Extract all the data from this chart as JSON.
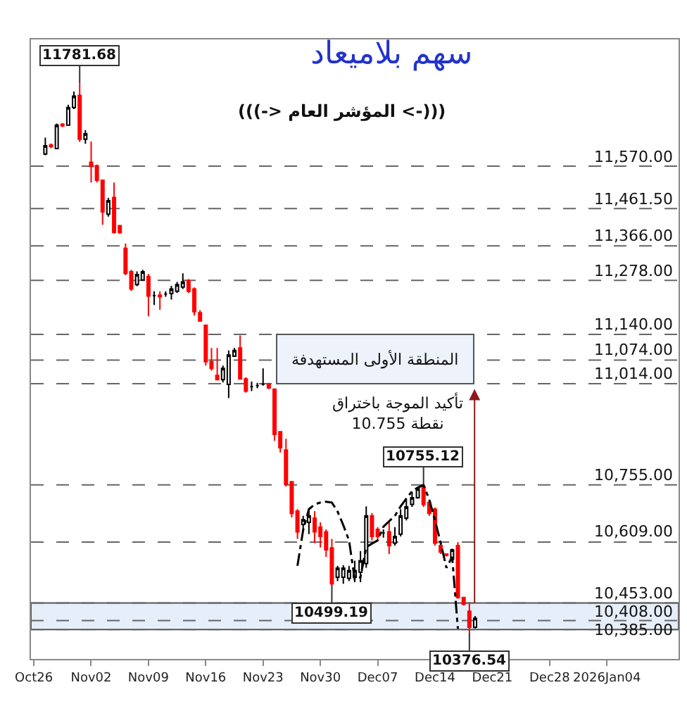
{
  "chart_data": {
    "type": "candlestick",
    "title": "سهم بلاميعاد",
    "subtitle": "(((-> المؤشر العام <-)))",
    "categories": [
      "Oct26",
      null,
      null,
      null,
      null,
      null,
      null,
      null,
      null,
      null,
      "Nov02",
      null,
      null,
      null,
      null,
      null,
      null,
      null,
      null,
      null,
      "Nov09",
      null,
      null,
      null,
      null,
      null,
      null,
      null,
      null,
      null,
      "Nov16",
      null,
      null,
      null,
      null,
      null,
      null,
      null,
      null,
      null,
      "Nov23",
      null,
      null,
      null,
      null,
      null,
      null,
      null,
      null,
      null,
      "Nov30",
      null,
      null,
      null,
      null,
      null,
      null,
      null,
      null,
      null,
      "Dec07",
      null,
      null,
      null,
      null,
      null,
      null,
      null,
      null,
      null,
      "Dec14",
      null,
      null,
      null,
      null,
      null,
      null,
      null,
      null,
      null,
      "Dec21",
      null,
      null,
      null,
      null,
      null,
      null,
      null,
      null,
      null,
      "Dec28",
      null,
      null,
      null,
      null,
      null,
      null,
      null,
      null,
      null,
      "2026Jan04",
      null,
      null,
      null,
      null,
      null,
      null,
      null,
      null,
      null,
      null,
      null,
      null
    ],
    "ohlc": [
      null,
      null,
      [
        11601,
        11643,
        11598,
        11622
      ],
      [
        11624,
        11628,
        11616,
        11620
      ],
      [
        11615,
        11679,
        11613,
        11675
      ],
      [
        11677,
        11680,
        11670,
        11673
      ],
      [
        11675,
        11727,
        11673,
        11720
      ],
      [
        11720,
        11761,
        11716,
        11749
      ],
      [
        11751,
        11781.68,
        11632,
        11639
      ],
      [
        11639,
        11662,
        11627,
        11653
      ],
      [
        11580,
        11633,
        11528,
        11569
      ],
      [
        11571,
        11574,
        11528,
        11534
      ],
      [
        11534,
        11536,
        11420,
        11453
      ],
      [
        11447,
        11489,
        11441,
        11482
      ],
      [
        11490,
        11528,
        11397,
        11401
      ],
      [
        11418,
        11418,
        11397,
        11400
      ],
      [
        11360,
        11372,
        11291,
        11296
      ],
      [
        11300,
        11305,
        11251,
        11256
      ],
      [
        11267,
        11301,
        11263,
        11293
      ],
      [
        11279,
        11305,
        11277,
        11300
      ],
      [
        11288,
        11294,
        11186,
        11238
      ],
      [
        11239,
        11250,
        11215,
        11239
      ],
      [
        11240,
        11250,
        11203,
        11236
      ],
      [
        11243,
        11250,
        11236,
        11243
      ],
      [
        11244,
        11264,
        11229,
        11256
      ],
      [
        11250,
        11274,
        11246,
        11267
      ],
      [
        11261,
        11296,
        11256,
        11274
      ],
      [
        11277,
        11281,
        11246,
        11250
      ],
      [
        11256,
        11260,
        11188,
        11198
      ],
      [
        11195,
        11202,
        11174,
        11174
      ],
      [
        11163,
        11163,
        11060,
        11070
      ],
      [
        11070,
        11105,
        11047,
        11053
      ],
      [
        11035,
        11105,
        11024,
        11024
      ],
      [
        11024,
        11060,
        11017,
        11053
      ],
      [
        11012,
        11099,
        10977,
        11087
      ],
      [
        11084,
        11105,
        11084,
        11099
      ],
      [
        11105,
        11137,
        11026,
        11026
      ],
      [
        11026,
        11030,
        10991,
        10995
      ],
      [
        11006,
        11019,
        10995,
        11006
      ],
      [
        11009,
        11016,
        11002,
        11009
      ],
      [
        11012,
        11053,
        11009,
        11012
      ],
      [
        11012,
        11016,
        11000,
        11003
      ],
      [
        11000,
        11000,
        10868,
        10884
      ],
      [
        10891,
        10891,
        10838,
        10850
      ],
      [
        10844,
        10873,
        10751,
        10757
      ],
      [
        10763,
        10763,
        10672,
        10682
      ],
      [
        10688,
        10693,
        10617,
        10635
      ],
      [
        10654,
        10676,
        10641,
        10666
      ],
      [
        10659,
        10693,
        10629,
        10676
      ],
      [
        10670,
        10688,
        10606,
        10635
      ],
      [
        10647,
        10659,
        10595,
        10623
      ],
      [
        10635,
        10641,
        10571,
        10589
      ],
      [
        10594,
        10617,
        10499.19,
        10502
      ],
      [
        10519,
        10548,
        10509,
        10542
      ],
      [
        10519,
        10550,
        10502,
        10542
      ],
      [
        10516,
        10548,
        10509,
        10536
      ],
      [
        10519,
        10561,
        10506,
        10536
      ],
      [
        10532,
        10586,
        10506,
        10561
      ],
      [
        10554,
        10700,
        10543,
        10676
      ],
      [
        10676,
        10683,
        10613,
        10623
      ],
      [
        10641,
        10647,
        10616,
        10623
      ],
      [
        10632,
        10641,
        10620,
        10632
      ],
      [
        10635,
        10659,
        10578,
        10600
      ],
      [
        10606,
        10647,
        10600,
        10623
      ],
      [
        10629,
        10693,
        10623,
        10676
      ],
      [
        10670,
        10717,
        10664,
        10699
      ],
      [
        10705,
        10738,
        10699,
        10722
      ],
      [
        10722,
        10750,
        10720,
        10745
      ],
      [
        10750,
        10755.12,
        10699,
        10705
      ],
      [
        10710,
        10713,
        10676,
        10682
      ],
      [
        10693,
        10697,
        10600,
        10606
      ],
      [
        10600,
        10606,
        10578,
        10583
      ],
      [
        10578,
        10580,
        10572,
        10575
      ],
      [
        10565,
        10592,
        10562,
        10589
      ],
      [
        10600,
        10609,
        10464,
        10467
      ],
      [
        10467,
        10467,
        10447,
        10450
      ],
      [
        10432,
        10453,
        10376.54,
        10391
      ],
      [
        10391,
        10420,
        10388,
        10414
      ],
      null,
      null,
      null,
      null,
      null,
      null,
      null,
      null,
      null,
      null,
      null,
      null,
      null,
      null,
      null,
      null,
      null,
      null,
      null,
      null,
      null,
      null,
      null,
      null,
      null,
      null,
      null,
      null,
      null,
      null,
      null,
      null,
      null,
      null,
      null
    ],
    "colors": [
      null,
      null,
      "#000000",
      "#ff0000",
      "#000000",
      "#ff0000",
      "#000000",
      "#000000",
      "#ff0000",
      "#000000",
      "#ff0000",
      "#ff0000",
      "#ff0000",
      "#000000",
      "#ff0000",
      "#ff0000",
      "#ff0000",
      "#ff0000",
      "#000000",
      "#000000",
      "#ff0000",
      "#000000",
      "#ff0000",
      "#000000",
      "#000000",
      "#000000",
      "#000000",
      "#ff0000",
      "#ff0000",
      "#ff0000",
      "#ff0000",
      "#ff0000",
      "#ff0000",
      "#000000",
      "#000000",
      "#000000",
      "#ff0000",
      "#ff0000",
      "#000000",
      "#000000",
      "#000000",
      "#ff0000",
      "#ff0000",
      "#ff0000",
      "#ff0000",
      "#ff0000",
      "#ff0000",
      "#000000",
      "#000000",
      "#ff0000",
      "#ff0000",
      "#ff0000",
      "#ff0000",
      "#000000",
      "#000000",
      "#000000",
      "#000000",
      "#000000",
      "#000000",
      "#ff0000",
      "#ff0000",
      "#000000",
      "#ff0000",
      "#000000",
      "#000000",
      "#000000",
      "#000000",
      "#000000",
      "#ff0000",
      "#ff0000",
      "#ff0000",
      "#ff0000",
      "#ff0000",
      "#000000",
      "#ff0000",
      "#ff0000",
      "#ff0000",
      "#000000",
      null,
      null,
      null,
      null,
      null,
      null,
      null,
      null,
      null,
      null,
      null,
      null,
      null,
      null,
      null,
      null,
      null,
      null,
      null,
      null,
      null,
      null,
      null,
      null,
      null,
      null,
      null,
      null,
      null,
      null,
      null,
      null,
      null,
      null,
      null
    ],
    "series": [
      {
        "type": "line",
        "color": "#000000",
        "line_style": "dashed",
        "values": [
          null,
          null,
          null,
          null,
          null,
          null,
          null,
          null,
          null,
          null,
          null,
          null,
          null,
          null,
          null,
          null,
          null,
          null,
          null,
          null,
          null,
          null,
          null,
          null,
          null,
          null,
          null,
          null,
          null,
          null,
          null,
          null,
          null,
          null,
          null,
          null,
          null,
          null,
          null,
          null,
          null,
          null,
          null,
          null,
          null,
          null,
          10548,
          10640,
          10693,
          10705,
          10710,
          10712,
          10710,
          10687,
          10652,
          10613,
          10513,
          10519,
          10596,
          10605,
          10613,
          10648,
          10662,
          10676,
          10700,
          10720,
          10739,
          10748,
          10755,
          10717,
          10665,
          10606,
          10543,
          10571,
          10387,
          null,
          null,
          null,
          null,
          null,
          null,
          null,
          null,
          null,
          null,
          null,
          null,
          null,
          null,
          null,
          null,
          null,
          null,
          null,
          null,
          null,
          null,
          null,
          null,
          null,
          null,
          null,
          null,
          null,
          null,
          null,
          null,
          null,
          null,
          null,
          null,
          null,
          null
        ]
      }
    ],
    "ylim": [
      10310,
      11894
    ],
    "tick_labels": "x",
    "ref_lines": [
      {
        "axis": "y",
        "value": 11570,
        "label": "11,570.00"
      },
      {
        "axis": "y",
        "value": 11461.5,
        "label": "11,461.50"
      },
      {
        "axis": "y",
        "value": 11366,
        "label": "11,366.00"
      },
      {
        "axis": "y",
        "value": 11278,
        "label": "11,278.00"
      },
      {
        "axis": "y",
        "value": 11140,
        "label": "11,140.00"
      },
      {
        "axis": "y",
        "value": 11074,
        "label": "11,074.00"
      },
      {
        "axis": "y",
        "value": 11014,
        "label": "11,014.00"
      },
      {
        "axis": "y",
        "value": 10755,
        "label": "10,755.00"
      },
      {
        "axis": "y",
        "value": 10609,
        "label": "10,609.00"
      },
      {
        "axis": "y",
        "value": 10453,
        "label": "10,453.00"
      },
      {
        "axis": "y",
        "value": 10408,
        "label": "10,408.00"
      },
      {
        "axis": "y",
        "value": 10385,
        "label": "10,385.00"
      }
    ],
    "bands": [
      {
        "axis": "y",
        "from": 10385,
        "to": 10453,
        "color": "#e6eefa"
      }
    ],
    "annotations": [
      {
        "text": "11781.68",
        "y": 11781.68
      },
      {
        "text": "10499.19",
        "y": 10499.19
      },
      {
        "text": "10755.12",
        "y": 10755.12
      },
      {
        "text": "10376.54",
        "y": 10376.54
      },
      "المنطقة الأولى المستهدفة",
      "تأكيد الموجة باختراق\n10.755 نقطة"
    ]
  }
}
